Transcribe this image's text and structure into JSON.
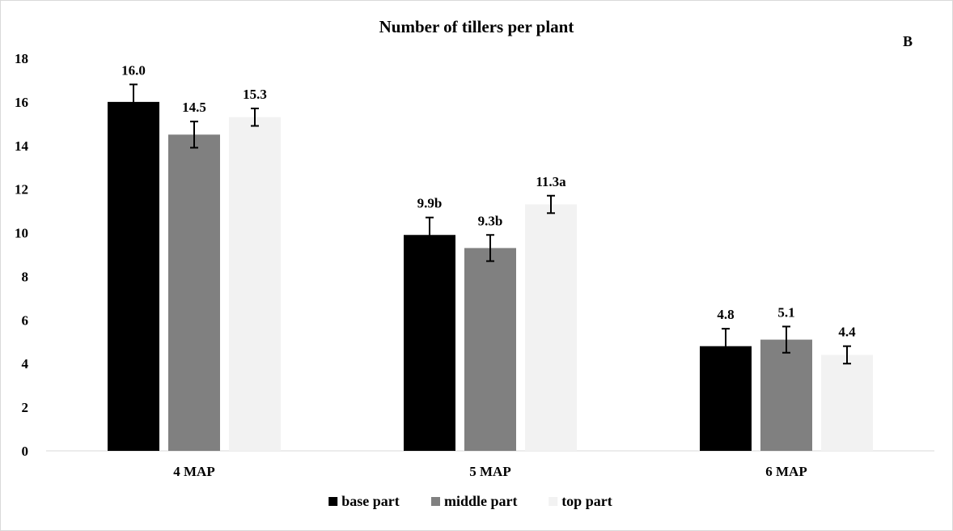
{
  "chart_data": {
    "type": "bar",
    "title": "Number of tillers per plant",
    "panel_label": "B",
    "xlabel": "",
    "ylabel": "",
    "categories": [
      "4 MAP",
      "5 MAP",
      "6 MAP"
    ],
    "ylim": [
      0,
      18
    ],
    "yticks": [
      0,
      2,
      4,
      6,
      8,
      10,
      12,
      14,
      16,
      18
    ],
    "grid": false,
    "legend_position": "bottom",
    "series": [
      {
        "name": "base part",
        "color": "#000000",
        "values": [
          16.0,
          9.9,
          4.8
        ],
        "errors": [
          0.8,
          0.8,
          0.8
        ],
        "labels": [
          "16.0",
          "9.9b",
          "4.8"
        ]
      },
      {
        "name": "middle part",
        "color": "#808080",
        "values": [
          14.5,
          9.3,
          5.1
        ],
        "errors": [
          0.6,
          0.6,
          0.6
        ],
        "labels": [
          "14.5",
          "9.3b",
          "5.1"
        ]
      },
      {
        "name": "top part",
        "color": "#f2f2f2",
        "values": [
          15.3,
          11.3,
          4.4
        ],
        "errors": [
          0.4,
          0.4,
          0.4
        ],
        "labels": [
          "15.3",
          "11.3a",
          "4.4"
        ]
      }
    ]
  }
}
